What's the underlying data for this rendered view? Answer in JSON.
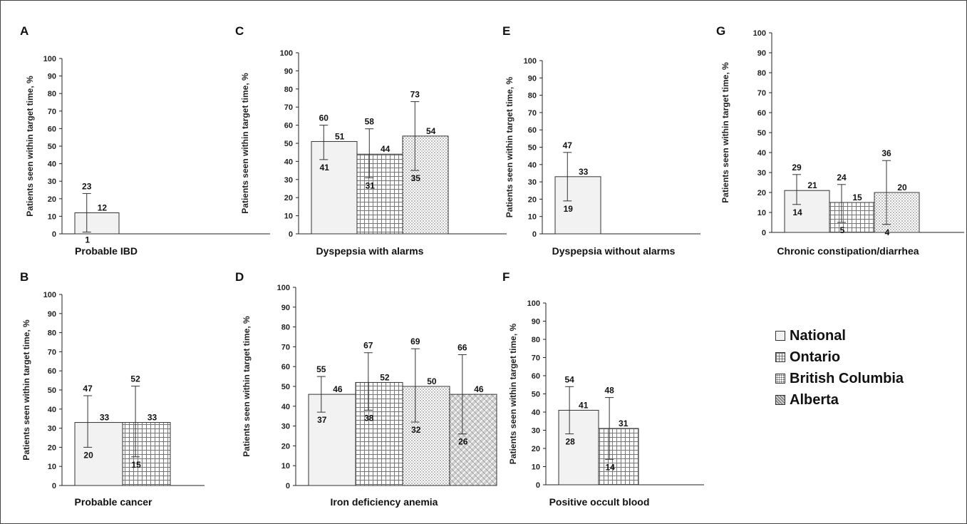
{
  "legend": [
    {
      "name": "National",
      "color": "#f2f2f2",
      "pattern": "plain"
    },
    {
      "name": "Ontario",
      "color": "#ffffff",
      "pattern": "grid"
    },
    {
      "name": "British Columbia",
      "color": "#ffffff",
      "pattern": "dots"
    },
    {
      "name": "Alberta",
      "color": "#cccccc",
      "pattern": "hatch"
    }
  ],
  "chart_data": [
    {
      "panel": "A",
      "type": "bar",
      "title": "Probable IBD",
      "ylabel": "Patients seen within target time, %",
      "ylim": [
        0,
        100
      ],
      "yticks": [
        0,
        10,
        20,
        30,
        40,
        50,
        60,
        70,
        80,
        90,
        100
      ],
      "bars": [
        {
          "series": "National",
          "value": 12,
          "low": 1,
          "high": 23
        }
      ]
    },
    {
      "panel": "C",
      "type": "bar",
      "title": "Dyspepsia with alarms",
      "ylabel": "Patients seen within target time, %",
      "ylim": [
        0,
        100
      ],
      "yticks": [
        0,
        10,
        20,
        30,
        40,
        50,
        60,
        70,
        80,
        90,
        100
      ],
      "bars": [
        {
          "series": "National",
          "value": 51,
          "low": 41,
          "high": 60
        },
        {
          "series": "Ontario",
          "value": 44,
          "low": 31,
          "high": 58
        },
        {
          "series": "British Columbia",
          "value": 54,
          "low": 35,
          "high": 73
        }
      ]
    },
    {
      "panel": "E",
      "type": "bar",
      "title": "Dyspepsia without alarms",
      "ylabel": "Patients seen within target time, %",
      "ylim": [
        0,
        100
      ],
      "yticks": [
        0,
        10,
        20,
        30,
        40,
        50,
        60,
        70,
        80,
        90,
        100
      ],
      "bars": [
        {
          "series": "National",
          "value": 33,
          "low": 19,
          "high": 47
        }
      ]
    },
    {
      "panel": "G",
      "type": "bar",
      "title": "Chronic constipation/diarrhea",
      "ylabel": "Patients seen within target time, %",
      "ylim": [
        0,
        100
      ],
      "yticks": [
        0,
        10,
        20,
        30,
        40,
        50,
        60,
        70,
        80,
        90,
        100
      ],
      "bars": [
        {
          "series": "National",
          "value": 21,
          "low": 14,
          "high": 29
        },
        {
          "series": "Ontario",
          "value": 15,
          "low": 5,
          "high": 24
        },
        {
          "series": "British Columbia",
          "value": 20,
          "low": 4,
          "high": 36
        }
      ]
    },
    {
      "panel": "B",
      "type": "bar",
      "title": "Probable cancer",
      "ylabel": "Patients seen within target time, %",
      "ylim": [
        0,
        100
      ],
      "yticks": [
        0,
        10,
        20,
        30,
        40,
        50,
        60,
        70,
        80,
        90,
        100
      ],
      "bars": [
        {
          "series": "National",
          "value": 33,
          "low": 20,
          "high": 47
        },
        {
          "series": "Ontario",
          "value": 33,
          "low": 15,
          "high": 52
        }
      ]
    },
    {
      "panel": "D",
      "type": "bar",
      "title": "Iron deficiency anemia",
      "ylabel": "Patients seen within target time, %",
      "ylim": [
        0,
        100
      ],
      "yticks": [
        0,
        10,
        20,
        30,
        40,
        50,
        60,
        70,
        80,
        90,
        100
      ],
      "bars": [
        {
          "series": "National",
          "value": 46,
          "low": 37,
          "high": 55
        },
        {
          "series": "Ontario",
          "value": 52,
          "low": 38,
          "high": 67
        },
        {
          "series": "British Columbia",
          "value": 50,
          "low": 32,
          "high": 69
        },
        {
          "series": "Alberta",
          "value": 46,
          "low": 26,
          "high": 66
        }
      ]
    },
    {
      "panel": "F",
      "type": "bar",
      "title": "Positive occult blood",
      "ylabel": "Patients seen within target time, %",
      "ylim": [
        0,
        100
      ],
      "yticks": [
        0,
        10,
        20,
        30,
        40,
        50,
        60,
        70,
        80,
        90,
        100
      ],
      "bars": [
        {
          "series": "National",
          "value": 41,
          "low": 28,
          "high": 54
        },
        {
          "series": "Ontario",
          "value": 31,
          "low": 14,
          "high": 48
        }
      ]
    }
  ]
}
